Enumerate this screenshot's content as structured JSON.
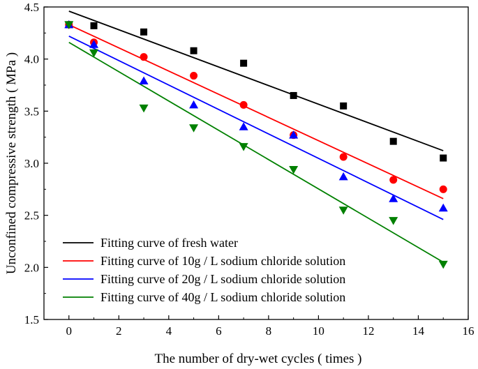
{
  "chart_data": {
    "type": "scatter",
    "title": "",
    "xlabel": "The number of dry-wet cycles ( times )",
    "ylabel": "Unconfined compressive strength ( MPa )",
    "xlim": [
      -1,
      16
    ],
    "ylim": [
      1.5,
      4.5
    ],
    "xticks": [
      0,
      2,
      4,
      6,
      8,
      10,
      12,
      14,
      16
    ],
    "yticks": [
      1.5,
      2.0,
      2.5,
      3.0,
      3.5,
      4.0,
      4.5
    ],
    "xtick_labels": [
      "0",
      "2",
      "4",
      "6",
      "8",
      "10",
      "12",
      "14",
      "16"
    ],
    "ytick_labels": [
      "1.5",
      "2.0",
      "2.5",
      "3.0",
      "3.5",
      "4.0",
      "4.5"
    ],
    "grid": false,
    "legend_position": "bottom-left",
    "series": [
      {
        "name": "Fresh water",
        "marker": "square",
        "color": "#000000",
        "x": [
          0,
          1,
          3,
          5,
          7,
          9,
          11,
          13,
          15
        ],
        "y": [
          4.33,
          4.32,
          4.26,
          4.08,
          3.96,
          3.65,
          3.55,
          3.21,
          3.05
        ],
        "fit_label": "Fitting curve of fresh water",
        "fit_line": [
          [
            0,
            4.46
          ],
          [
            15,
            3.12
          ]
        ]
      },
      {
        "name": "10g/L sodium chloride solution",
        "marker": "circle",
        "color": "#ff0000",
        "x": [
          0,
          1,
          3,
          5,
          7,
          9,
          11,
          13,
          15
        ],
        "y": [
          4.33,
          4.16,
          4.02,
          3.84,
          3.56,
          3.27,
          3.06,
          2.84,
          2.75
        ],
        "fit_label": "Fitting curve of 10g / L sodium chloride solution",
        "fit_line": [
          [
            0,
            4.33
          ],
          [
            15,
            2.66
          ]
        ]
      },
      {
        "name": "20g/L sodium chloride solution",
        "marker": "triangle-up",
        "color": "#0000ff",
        "x": [
          0,
          1,
          3,
          5,
          7,
          9,
          11,
          13,
          15
        ],
        "y": [
          4.33,
          4.14,
          3.79,
          3.56,
          3.35,
          3.27,
          2.87,
          2.66,
          2.57
        ],
        "fit_label": "Fitting curve of 20g / L sodium chloride solution",
        "fit_line": [
          [
            0,
            4.22
          ],
          [
            15,
            2.46
          ]
        ]
      },
      {
        "name": "40g/L sodium chloride solution",
        "marker": "triangle-down",
        "color": "#008000",
        "x": [
          0,
          1,
          3,
          5,
          7,
          9,
          11,
          13,
          15
        ],
        "y": [
          4.33,
          4.06,
          3.53,
          3.34,
          3.16,
          2.94,
          2.55,
          2.45,
          2.03
        ],
        "fit_label": "Fitting curve of 40g / L sodium chloride solution",
        "fit_line": [
          [
            0,
            4.16
          ],
          [
            15,
            2.05
          ]
        ]
      }
    ]
  }
}
